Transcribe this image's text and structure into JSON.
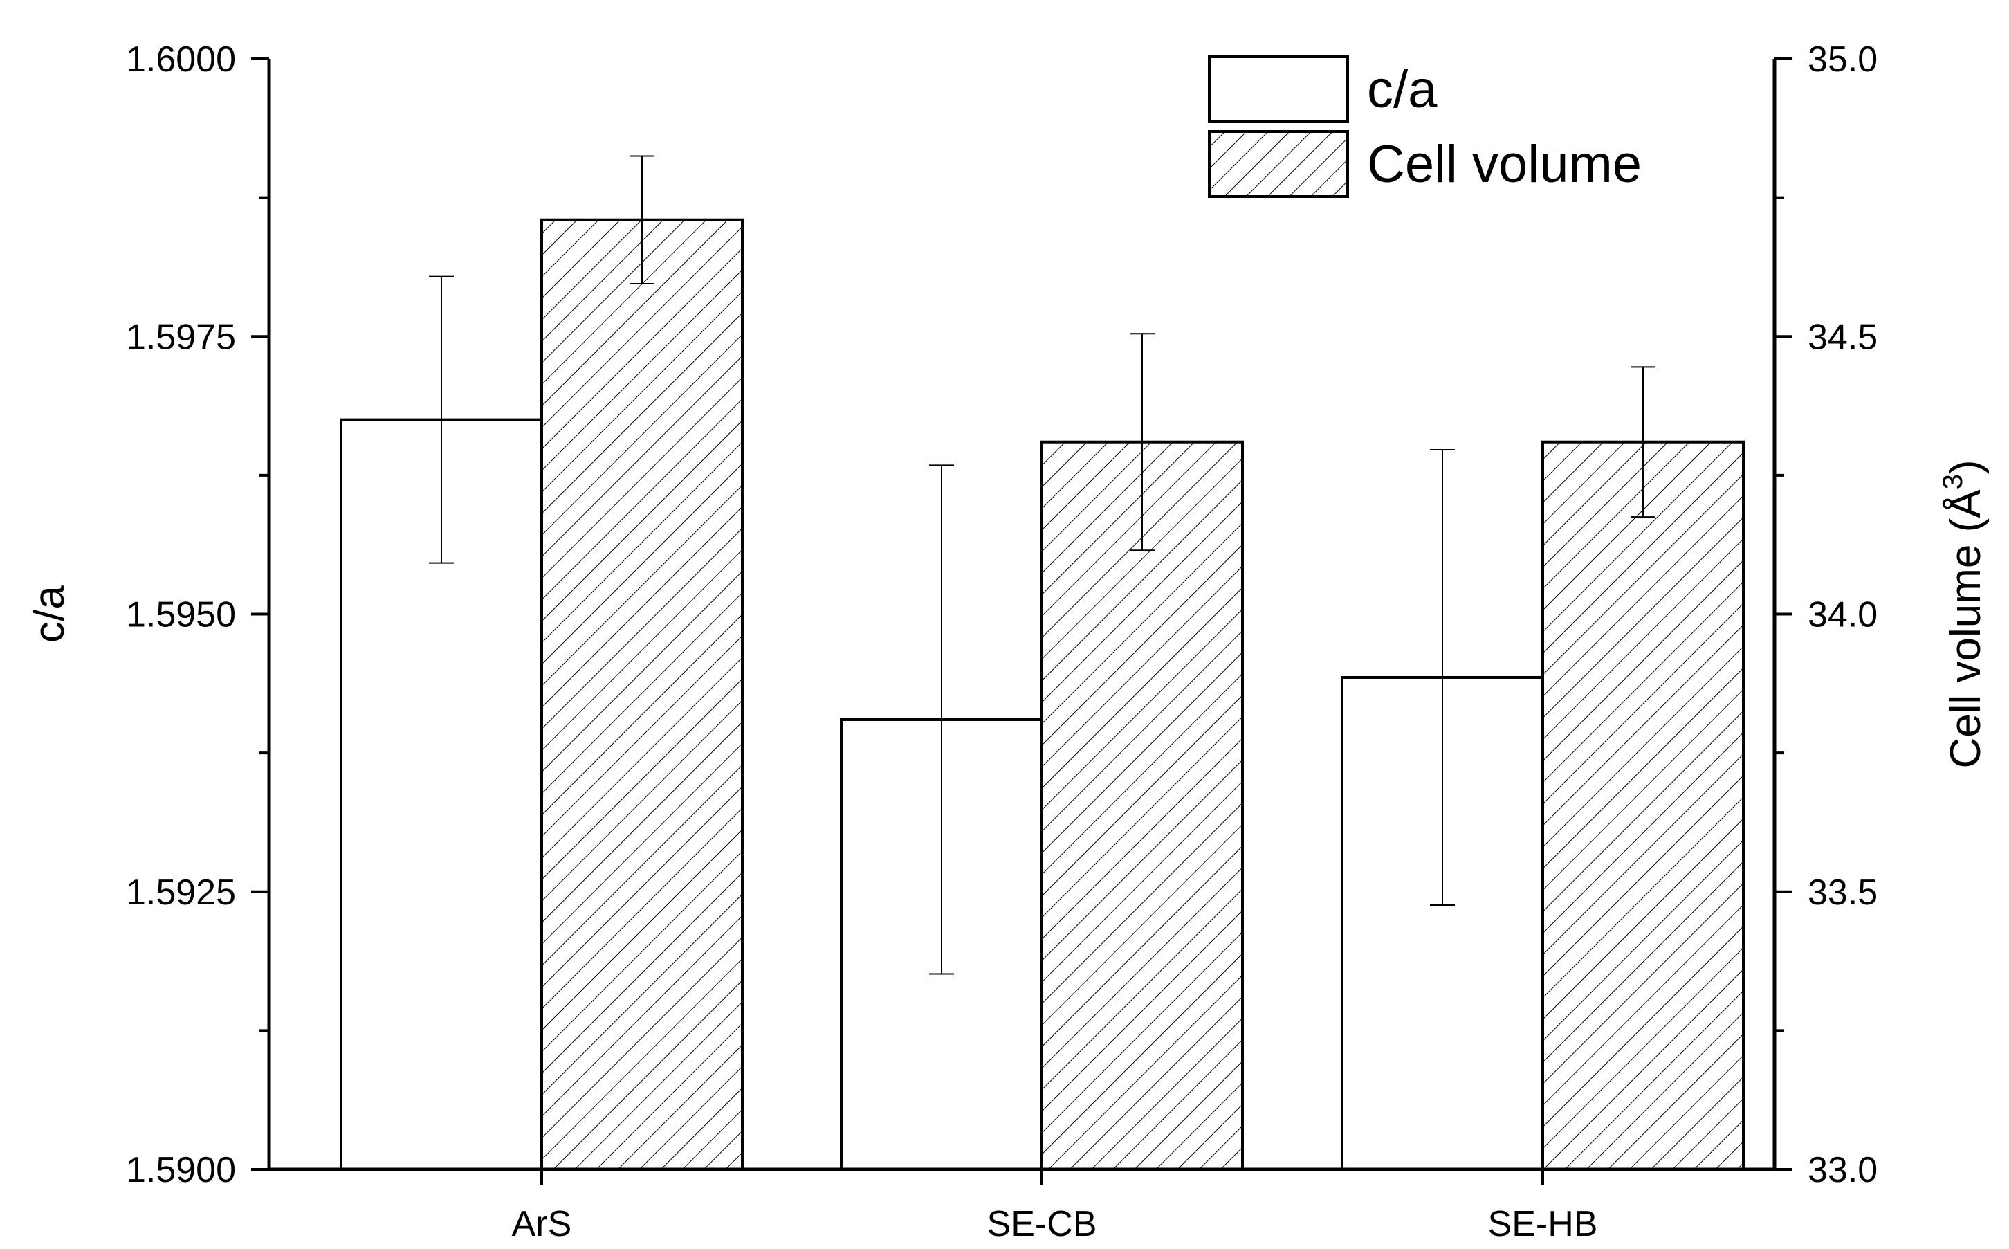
{
  "chart_data": {
    "type": "bar",
    "categories": [
      "ArS",
      "SE-CB",
      "SE-HB"
    ],
    "series": [
      {
        "name": "c/a",
        "axis": "left",
        "fill": "none",
        "values": [
          1.59675,
          1.59405,
          1.59443
        ],
        "errors": [
          0.00129,
          0.00229,
          0.00205
        ]
      },
      {
        "name": "Cell volume",
        "axis": "right",
        "fill": "hatch",
        "values": [
          34.71,
          34.31,
          34.31
        ],
        "errors": [
          0.115,
          0.195,
          0.135
        ]
      }
    ],
    "left_axis": {
      "label": "c/a",
      "range": [
        1.59,
        1.6
      ],
      "ticks": [
        "1.5900",
        "1.5925",
        "1.5950",
        "1.5975",
        "1.6000"
      ]
    },
    "right_axis": {
      "label_main": "Cell volume (Å",
      "label_sup": "3",
      "label_end": ")",
      "range": [
        33.0,
        35.0
      ],
      "ticks": [
        "33.0",
        "33.5",
        "34.0",
        "34.5",
        "35.0"
      ]
    },
    "legend": {
      "position": "top-right",
      "entries": [
        "c/a",
        "Cell volume"
      ]
    },
    "grid": false,
    "colors": {
      "stroke": "#000000",
      "background": "#ffffff"
    }
  }
}
